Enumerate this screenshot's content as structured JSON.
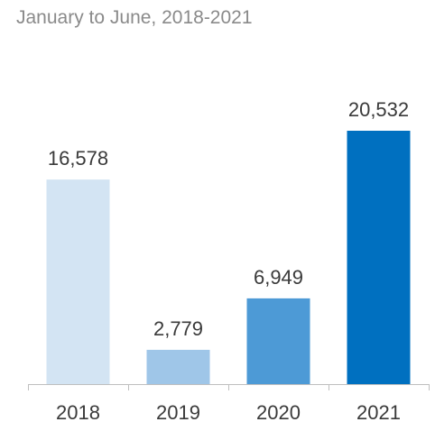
{
  "chart_data": {
    "type": "bar",
    "title": "",
    "subtitle": "January to June, 2018-2021",
    "xlabel": "",
    "ylabel": "",
    "categories": [
      "2018",
      "2019",
      "2020",
      "2021"
    ],
    "values": [
      16578,
      2779,
      6949,
      20532
    ],
    "value_labels": [
      "16,578",
      "2,779",
      "6,949",
      "20,532"
    ],
    "bar_colors": [
      "#d3e4f3",
      "#9fc6e8",
      "#4d9ad6",
      "#0070c0"
    ],
    "ylim": [
      0,
      20532
    ],
    "grid": false,
    "legend": "none"
  }
}
